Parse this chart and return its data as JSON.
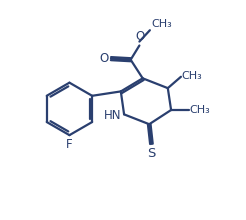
{
  "background_color": "#ffffff",
  "line_color": "#2a3f6f",
  "line_width": 1.6,
  "text_color": "#2a3f6f",
  "font_size": 8.5,
  "xlim": [
    0,
    10
  ],
  "ylim": [
    0,
    10
  ]
}
